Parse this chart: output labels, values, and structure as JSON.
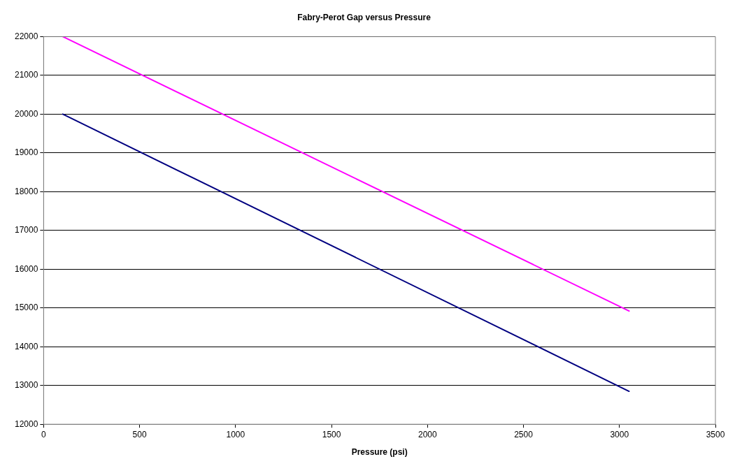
{
  "chart_data": {
    "type": "line",
    "title": "Fabry-Perot Gap versus Pressure",
    "xlabel": "Pressure (psi)",
    "x": [
      100,
      3050
    ],
    "series": [
      {
        "color": "#ff00ff",
        "values": [
          22000,
          14920
        ]
      },
      {
        "color": "#000080",
        "values": [
          20000,
          12850
        ]
      }
    ],
    "xlim": [
      0,
      3500
    ],
    "xticks": [
      0,
      500,
      1000,
      1500,
      2000,
      2500,
      3000,
      3500
    ],
    "ylim": [
      12000,
      22000
    ],
    "yticks": [
      12000,
      13000,
      14000,
      15000,
      16000,
      17000,
      18000,
      19000,
      20000,
      21000,
      22000
    ],
    "grid": "y",
    "legend": false,
    "marker": "none",
    "line_style": "solid"
  }
}
